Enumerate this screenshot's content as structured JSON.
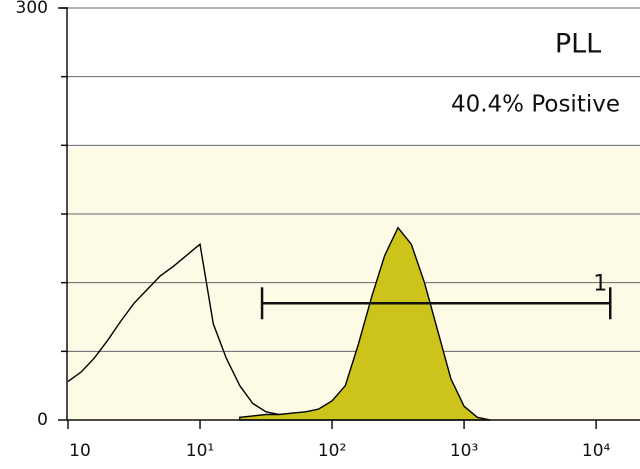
{
  "chart_data": {
    "type": "histogram-overlay",
    "annotations": [
      "PLL",
      "40.4% Positive"
    ],
    "log_x": true,
    "xlim": [
      1,
      21500
    ],
    "xticks": [
      {
        "value": 1,
        "label": "10"
      },
      {
        "value": 10,
        "label": "10¹"
      },
      {
        "value": 100,
        "label": "10²"
      },
      {
        "value": 1000,
        "label": "10³"
      },
      {
        "value": 10000,
        "label": "10⁴"
      }
    ],
    "ylim": [
      0,
      300
    ],
    "yticks": [
      0,
      300
    ],
    "grid_y": [
      50,
      100,
      150,
      200,
      250,
      300
    ],
    "series": [
      {
        "color": "#000000",
        "filled": false,
        "x": [
          1,
          1.26,
          1.58,
          2,
          2.51,
          3.16,
          3.98,
          5.01,
          6.31,
          7.94,
          10,
          12.6,
          15.8,
          20,
          25.1,
          31.6,
          39.8,
          50.1,
          63.1,
          79.4,
          100
        ],
        "values": [
          28,
          35,
          45,
          58,
          72,
          85,
          95,
          105,
          112,
          120,
          128,
          70,
          45,
          25,
          12,
          6,
          4,
          3,
          4,
          5,
          6
        ]
      },
      {
        "color": "#cdc41b",
        "filled": true,
        "x": [
          20,
          25.1,
          31.6,
          39.8,
          50.1,
          63.1,
          79.4,
          100,
          126,
          158,
          200,
          251,
          316,
          398,
          501,
          631,
          794,
          1000,
          1260,
          1585
        ],
        "values": [
          2,
          3,
          4,
          4,
          5,
          6,
          8,
          14,
          25,
          55,
          90,
          120,
          140,
          128,
          100,
          65,
          30,
          10,
          2,
          0
        ]
      }
    ],
    "gate": {
      "label": "1",
      "range": [
        29.5,
        12800
      ],
      "y": 85
    }
  }
}
